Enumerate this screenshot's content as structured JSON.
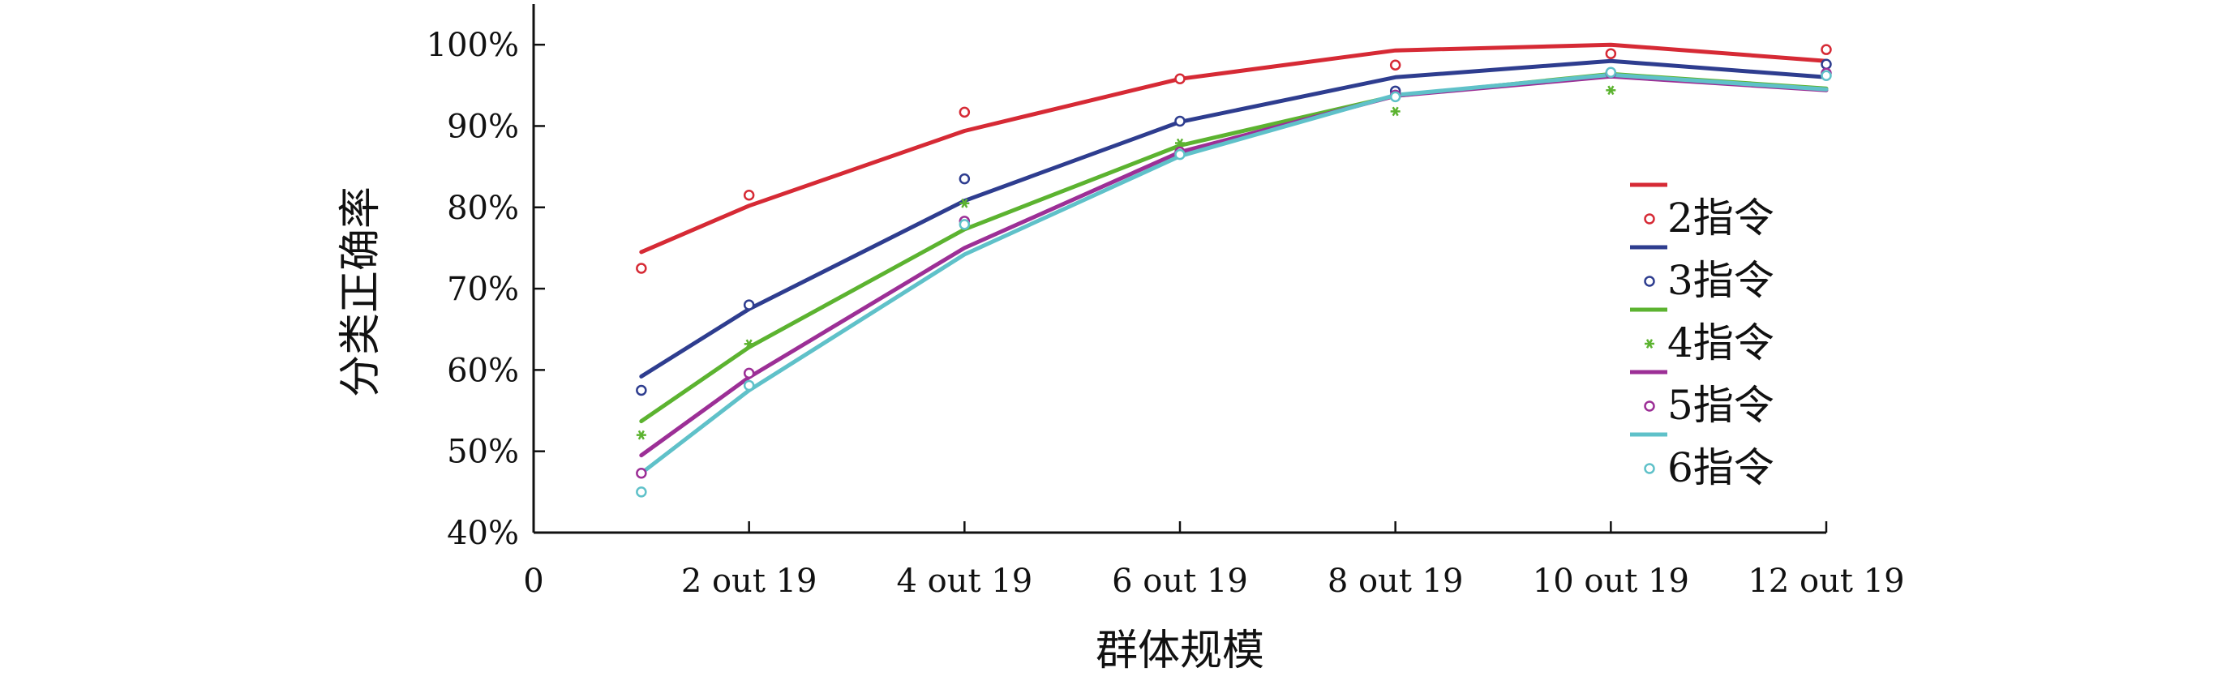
{
  "chart_data": {
    "type": "line",
    "title": "",
    "xlabel": "群体规模",
    "ylabel": "分类正确率",
    "x_ticks": [
      {
        "value": 0,
        "label": "0"
      },
      {
        "value": 2,
        "label": "2 out 19"
      },
      {
        "value": 4,
        "label": "4 out 19"
      },
      {
        "value": 6,
        "label": "6 out 19"
      },
      {
        "value": 8,
        "label": "8 out 19"
      },
      {
        "value": 10,
        "label": "10 out 19"
      },
      {
        "value": 12,
        "label": "12 out 19"
      }
    ],
    "y_ticks": [
      {
        "value": 40,
        "label": "40%"
      },
      {
        "value": 50,
        "label": "50%"
      },
      {
        "value": 60,
        "label": "60%"
      },
      {
        "value": 70,
        "label": "70%"
      },
      {
        "value": 80,
        "label": "80%"
      },
      {
        "value": 90,
        "label": "90%"
      },
      {
        "value": 100,
        "label": "100%"
      }
    ],
    "xlim": [
      0,
      12
    ],
    "ylim": [
      40,
      105
    ],
    "grid": false,
    "legend_position": "right",
    "series": [
      {
        "name": "2指令",
        "color": "#d62a35",
        "marker": "circle",
        "line": {
          "x": [
            1,
            2,
            4,
            6,
            8,
            10,
            12
          ],
          "y": [
            74.5,
            80.2,
            89.4,
            95.8,
            99.3,
            100.0,
            98.0
          ]
        },
        "points": {
          "x": [
            1,
            2,
            4,
            6,
            8,
            10,
            12
          ],
          "y": [
            72.5,
            81.5,
            91.7,
            95.8,
            97.5,
            98.9,
            99.4
          ]
        }
      },
      {
        "name": "3指令",
        "color": "#2e3d8f",
        "marker": "circle",
        "line": {
          "x": [
            1,
            2,
            4,
            6,
            8,
            10,
            12
          ],
          "y": [
            59.2,
            67.5,
            80.8,
            90.5,
            96.0,
            98.0,
            96.0
          ]
        },
        "points": {
          "x": [
            1,
            2,
            4,
            6,
            8,
            10,
            12
          ],
          "y": [
            57.5,
            68.0,
            83.5,
            90.6,
            94.3,
            96.5,
            97.6
          ]
        }
      },
      {
        "name": "4指令",
        "color": "#5cb330",
        "marker": "star",
        "line": {
          "x": [
            1,
            2,
            4,
            6,
            8,
            10,
            12
          ],
          "y": [
            53.7,
            62.8,
            77.3,
            87.6,
            93.7,
            96.4,
            94.6
          ]
        },
        "points": {
          "x": [
            1,
            2,
            4,
            6,
            8,
            10,
            12
          ],
          "y": [
            52.0,
            63.2,
            80.5,
            87.9,
            91.8,
            94.4,
            96.4
          ]
        }
      },
      {
        "name": "5指令",
        "color": "#9c2f96",
        "marker": "circle",
        "line": {
          "x": [
            1,
            2,
            4,
            6,
            8,
            10,
            12
          ],
          "y": [
            49.5,
            59.1,
            75.0,
            86.8,
            93.7,
            96.1,
            94.4
          ]
        },
        "points": {
          "x": [
            1,
            2,
            4,
            6,
            8,
            10,
            12
          ],
          "y": [
            47.3,
            59.6,
            78.3,
            86.8,
            93.8,
            96.5,
            96.5
          ]
        }
      },
      {
        "name": "6指令",
        "color": "#5fc1c9",
        "marker": "circle",
        "line": {
          "x": [
            1,
            2,
            4,
            6,
            8,
            10,
            12
          ],
          "y": [
            47.3,
            57.5,
            74.2,
            86.3,
            93.8,
            96.3,
            94.5
          ]
        },
        "points": {
          "x": [
            1,
            2,
            4,
            6,
            8,
            10,
            12
          ],
          "y": [
            45.0,
            58.1,
            77.9,
            86.5,
            93.6,
            96.6,
            96.2
          ]
        }
      }
    ]
  }
}
